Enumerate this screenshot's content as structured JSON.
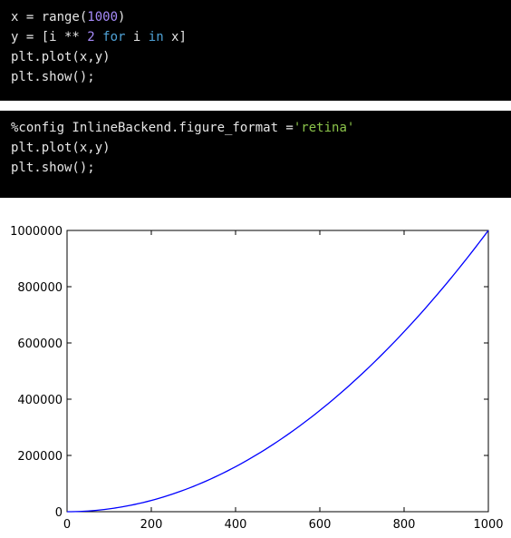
{
  "cells": [
    {
      "lines": [
        [
          {
            "t": "x = range(",
            "c": ""
          },
          {
            "t": "1000",
            "c": "num"
          },
          {
            "t": ")",
            "c": ""
          }
        ],
        [
          {
            "t": "y = [i ** ",
            "c": ""
          },
          {
            "t": "2",
            "c": "num"
          },
          {
            "t": " ",
            "c": ""
          },
          {
            "t": "for",
            "c": "kw"
          },
          {
            "t": " i ",
            "c": ""
          },
          {
            "t": "in",
            "c": "kw"
          },
          {
            "t": " x]",
            "c": ""
          }
        ],
        [
          {
            "t": "plt.plot(x,y)",
            "c": ""
          }
        ],
        [
          {
            "t": "plt.show();",
            "c": ""
          }
        ]
      ]
    },
    {
      "lines": [
        [
          {
            "t": "%config InlineBackend.figure_format =",
            "c": ""
          },
          {
            "t": "'retina'",
            "c": "str"
          }
        ],
        [
          {
            "t": "plt.plot(x,y)",
            "c": ""
          }
        ],
        [
          {
            "t": "plt.show();",
            "c": ""
          }
        ]
      ]
    }
  ],
  "colors": {
    "cell_bg": "#000000",
    "code_text": "#e6e6e6",
    "number": "#a78bfa",
    "keyword": "#4fa3d8",
    "string": "#8bc34a",
    "line": "#0000ff"
  },
  "chart_data": {
    "type": "line",
    "title": "",
    "xlabel": "",
    "ylabel": "",
    "xlim": [
      0,
      1000
    ],
    "ylim": [
      0,
      1000000
    ],
    "xticks": [
      0,
      200,
      400,
      600,
      800,
      1000
    ],
    "yticks": [
      0,
      200000,
      400000,
      600000,
      800000,
      1000000
    ],
    "x_tick_labels": [
      "0",
      "200",
      "400",
      "600",
      "800",
      "1000"
    ],
    "y_tick_labels": [
      "0",
      "200000",
      "400000",
      "600000",
      "800000",
      "1000000"
    ],
    "series": [
      {
        "x": [
          0,
          100,
          200,
          300,
          400,
          500,
          600,
          700,
          800,
          900,
          1000
        ],
        "values": [
          0,
          10000,
          40000,
          90000,
          160000,
          250000,
          360000,
          490000,
          640000,
          810000,
          1000000
        ]
      }
    ],
    "grid": false
  }
}
